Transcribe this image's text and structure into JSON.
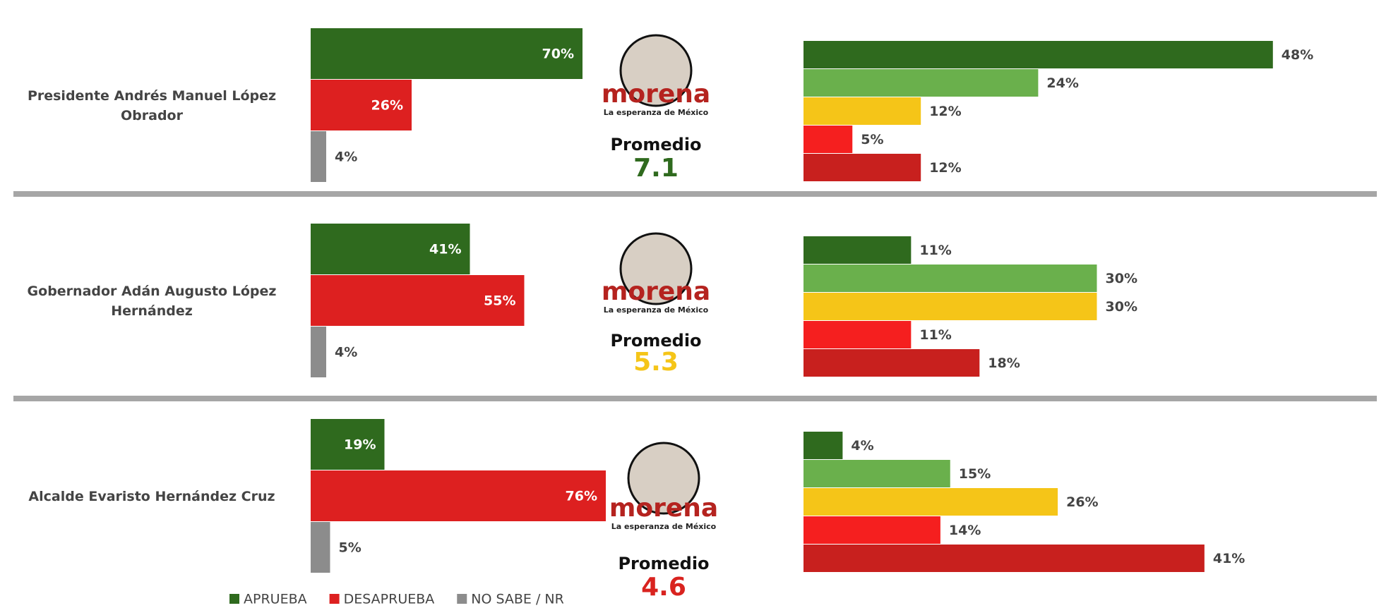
{
  "chart_data": [
    {
      "type": "bar",
      "title": "Presidente Andrés Manuel López Obrador",
      "values": [
        70,
        26,
        4
      ],
      "value_labels": [
        "70%",
        "26%",
        "4%"
      ],
      "colors": [
        "#2f6a1e",
        "#dd2020",
        "#8c8c8c"
      ],
      "average_label": "Promedio",
      "average": 7.1,
      "average_color": "#2f6a1e",
      "distribution": {
        "values": [
          48,
          24,
          12,
          5,
          12
        ],
        "value_labels": [
          "48%",
          "24%",
          "12%",
          "5%",
          "12%"
        ],
        "colors": [
          "#2f6a1e",
          "#6ab04c",
          "#f5c518",
          "#f51f1f",
          "#c8201e"
        ]
      }
    },
    {
      "type": "bar",
      "title": "Gobernador Adán Augusto López Hernández",
      "values": [
        41,
        55,
        4
      ],
      "value_labels": [
        "41%",
        "55%",
        "4%"
      ],
      "colors": [
        "#2f6a1e",
        "#dd2020",
        "#8c8c8c"
      ],
      "average_label": "Promedio",
      "average": 5.3,
      "average_color": "#f5c518",
      "distribution": {
        "values": [
          11,
          30,
          30,
          11,
          18
        ],
        "value_labels": [
          "11%",
          "30%",
          "30%",
          "11%",
          "18%"
        ],
        "colors": [
          "#2f6a1e",
          "#6ab04c",
          "#f5c518",
          "#f51f1f",
          "#c8201e"
        ]
      }
    },
    {
      "type": "bar",
      "title": "Alcalde Evaristo Hernández Cruz",
      "values": [
        19,
        76,
        5
      ],
      "value_labels": [
        "19%",
        "76%",
        "5%"
      ],
      "colors": [
        "#2f6a1e",
        "#dd2020",
        "#8c8c8c"
      ],
      "average_label": "Promedio",
      "average": 4.6,
      "average_color": "#d9231f",
      "distribution": {
        "values": [
          4,
          15,
          26,
          14,
          41
        ],
        "value_labels": [
          "4%",
          "15%",
          "26%",
          "14%",
          "41%"
        ],
        "colors": [
          "#2f6a1e",
          "#6ab04c",
          "#f5c518",
          "#f51f1f",
          "#c8201e"
        ]
      }
    }
  ],
  "logo": {
    "name": "morena",
    "tagline": "La esperanza de México",
    "color": "#b5231f"
  },
  "legend": [
    {
      "name": "APRUEBA",
      "color": "#2f6a1e"
    },
    {
      "name": "DESAPRUEBA",
      "color": "#dd2020"
    },
    {
      "name": "NO SABE / NR",
      "color": "#8c8c8c"
    }
  ]
}
